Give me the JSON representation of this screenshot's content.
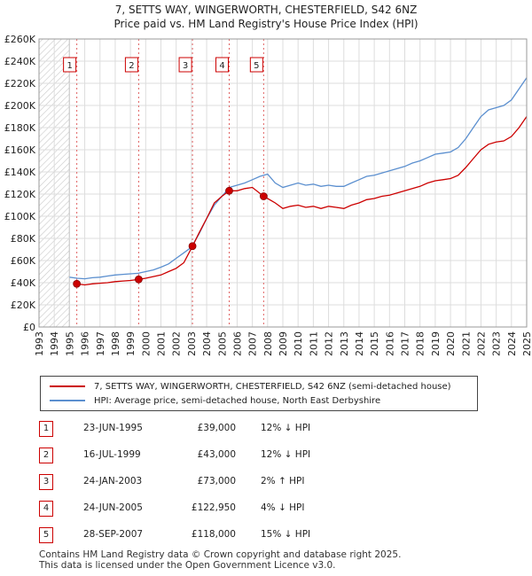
{
  "title_line1": "7, SETTS WAY, WINGERWORTH, CHESTERFIELD, S42 6NZ",
  "title_line2": "Price paid vs. HM Land Registry's House Price Index (HPI)",
  "legend": {
    "property": "7, SETTS WAY, WINGERWORTH, CHESTERFIELD, S42 6NZ (semi-detached house)",
    "hpi": "HPI: Average price, semi-detached house, North East Derbyshire"
  },
  "colors": {
    "property": "#cc0000",
    "hpi": "#5b8fcf",
    "grid": "#dddddd",
    "hatch": "#bbbbbb"
  },
  "transactions": [
    {
      "num": "1",
      "date": "23-JUN-1995",
      "price": "£39,000",
      "hpi": "12% ↓ HPI"
    },
    {
      "num": "2",
      "date": "16-JUL-1999",
      "price": "£43,000",
      "hpi": "12% ↓ HPI"
    },
    {
      "num": "3",
      "date": "24-JAN-2003",
      "price": "£73,000",
      "hpi": "2% ↑ HPI"
    },
    {
      "num": "4",
      "date": "24-JUN-2005",
      "price": "£122,950",
      "hpi": "4% ↓ HPI"
    },
    {
      "num": "5",
      "date": "28-SEP-2007",
      "price": "£118,000",
      "hpi": "15% ↓ HPI"
    }
  ],
  "footer_line1": "Contains HM Land Registry data © Crown copyright and database right 2025.",
  "footer_line2": "This data is licensed under the Open Government Licence v3.0.",
  "chart_data": {
    "type": "line",
    "xlim": [
      1993,
      2025
    ],
    "ylim": [
      0,
      260000
    ],
    "x_ticks": [
      1993,
      1994,
      1995,
      1996,
      1997,
      1998,
      1999,
      2000,
      2001,
      2002,
      2003,
      2004,
      2005,
      2006,
      2007,
      2008,
      2009,
      2010,
      2011,
      2012,
      2013,
      2014,
      2015,
      2016,
      2017,
      2018,
      2019,
      2020,
      2021,
      2022,
      2023,
      2024,
      2025
    ],
    "y_ticks": [
      0,
      20000,
      40000,
      60000,
      80000,
      100000,
      120000,
      140000,
      160000,
      180000,
      200000,
      220000,
      240000,
      260000
    ],
    "y_tick_labels": [
      "£0",
      "£20K",
      "£40K",
      "£60K",
      "£80K",
      "£100K",
      "£120K",
      "£140K",
      "£160K",
      "£180K",
      "£200K",
      "£220K",
      "£240K",
      "£260K"
    ],
    "hatch_range": [
      1993,
      1995.0
    ],
    "sales": [
      {
        "label": "1",
        "x": 1995.48,
        "y": 39000
      },
      {
        "label": "2",
        "x": 1999.54,
        "y": 43000
      },
      {
        "label": "3",
        "x": 2003.07,
        "y": 73000
      },
      {
        "label": "4",
        "x": 2005.48,
        "y": 122950
      },
      {
        "label": "5",
        "x": 2007.74,
        "y": 118000
      }
    ],
    "series": [
      {
        "name": "HPI: Average price, semi-detached house, North East Derbyshire",
        "x": [
          1995.0,
          1995.5,
          1996,
          1996.5,
          1997,
          1997.5,
          1998,
          1998.5,
          1999,
          1999.5,
          2000,
          2000.5,
          2001,
          2001.5,
          2002,
          2002.5,
          2003,
          2003.5,
          2004,
          2004.5,
          2005,
          2005.5,
          2006,
          2006.5,
          2007,
          2007.5,
          2008,
          2008.5,
          2009,
          2009.5,
          2010,
          2010.5,
          2011,
          2011.5,
          2012,
          2012.5,
          2013,
          2013.5,
          2014,
          2014.5,
          2015,
          2015.5,
          2016,
          2016.5,
          2017,
          2017.5,
          2018,
          2018.5,
          2019,
          2019.5,
          2020,
          2020.5,
          2021,
          2021.5,
          2022,
          2022.5,
          2023,
          2023.5,
          2024,
          2024.5,
          2025
        ],
        "values": [
          45000,
          44000,
          43500,
          44500,
          45000,
          46000,
          47000,
          47500,
          48000,
          48500,
          50000,
          51500,
          54000,
          57000,
          62000,
          67000,
          72000,
          84000,
          98000,
          110000,
          118000,
          126000,
          128000,
          130000,
          133000,
          136000,
          138000,
          130000,
          126000,
          128000,
          130000,
          128000,
          129000,
          127000,
          128000,
          127000,
          127000,
          130000,
          133000,
          136000,
          137000,
          139000,
          141000,
          143000,
          145000,
          148000,
          150000,
          153000,
          156000,
          157000,
          158000,
          162000,
          170000,
          180000,
          190000,
          196000,
          198000,
          200000,
          205000,
          215000,
          225000
        ]
      },
      {
        "name": "7, SETTS WAY, WINGERWORTH, CHESTERFIELD, S42 6NZ (semi-detached house)",
        "x": [
          1995.48,
          1996,
          1996.5,
          1997,
          1997.5,
          1998,
          1998.5,
          1999,
          1999.54,
          2000,
          2000.5,
          2001,
          2001.5,
          2002,
          2002.5,
          2003.07,
          2003.5,
          2004,
          2004.5,
          2005,
          2005.48,
          2006,
          2006.5,
          2007,
          2007.74,
          2008,
          2008.5,
          2009,
          2009.5,
          2010,
          2010.5,
          2011,
          2011.5,
          2012,
          2012.5,
          2013,
          2013.5,
          2014,
          2014.5,
          2015,
          2015.5,
          2016,
          2016.5,
          2017,
          2017.5,
          2018,
          2018.5,
          2019,
          2019.5,
          2020,
          2020.5,
          2021,
          2021.5,
          2022,
          2022.5,
          2023,
          2023.5,
          2024,
          2024.5,
          2025
        ],
        "values": [
          39000,
          38000,
          39000,
          39500,
          40000,
          41000,
          41500,
          42000,
          43000,
          44000,
          45500,
          47000,
          50000,
          53000,
          58000,
          73000,
          85000,
          98000,
          112000,
          118000,
          122950,
          123000,
          125000,
          126000,
          118000,
          116000,
          112000,
          107000,
          109000,
          110000,
          108000,
          109000,
          107000,
          109000,
          108000,
          107000,
          110000,
          112000,
          115000,
          116000,
          118000,
          119000,
          121000,
          123000,
          125000,
          127000,
          130000,
          132000,
          133000,
          134000,
          137000,
          144000,
          152000,
          160000,
          165000,
          167000,
          168000,
          172000,
          180000,
          190000
        ]
      }
    ]
  }
}
